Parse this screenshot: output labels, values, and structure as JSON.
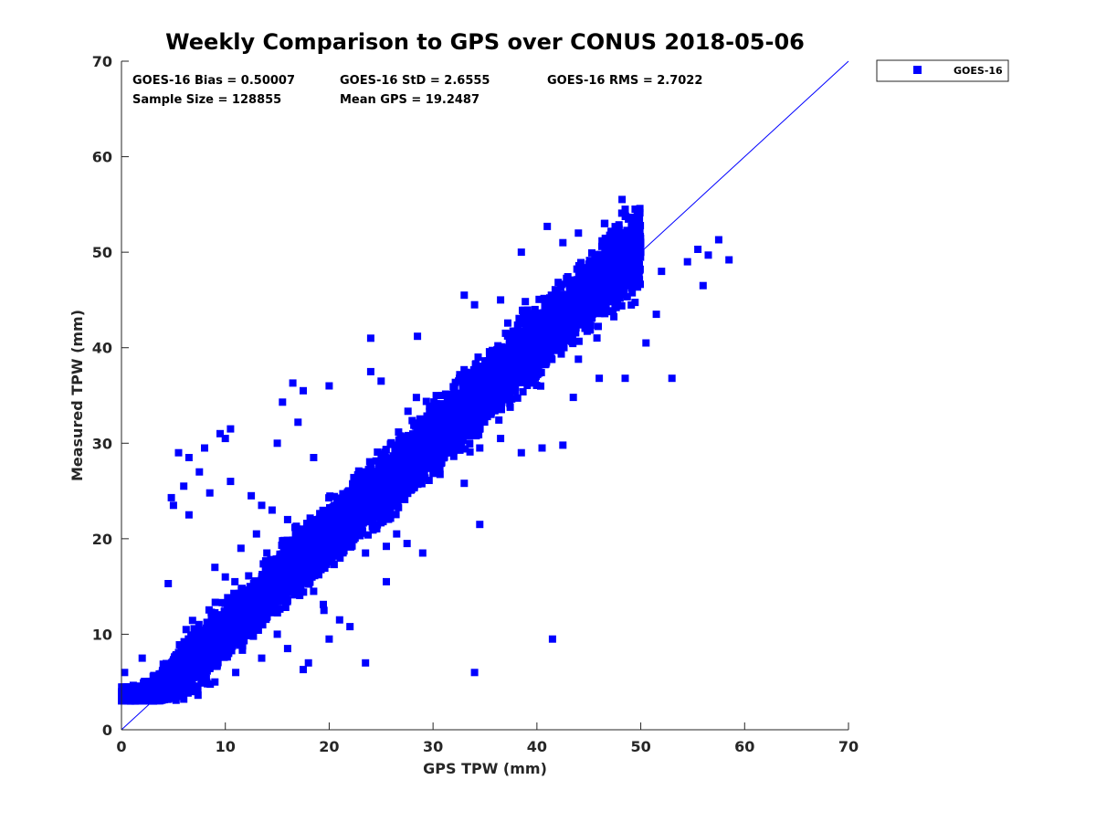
{
  "colors": {
    "series": "#0000ff",
    "axis": "#262626",
    "background": "#ffffff"
  },
  "stats": {
    "bias": "GOES-16 Bias = 0.50007",
    "std": "GOES-16 StD = 2.6555",
    "rms": "GOES-16 RMS = 2.7022",
    "sample_size": "Sample Size = 128855",
    "mean_gps": "Mean GPS = 19.2487"
  },
  "chart_data": {
    "type": "scatter",
    "title": "Weekly Comparison to GPS over CONUS 2018-05-06",
    "xlabel": "GPS TPW (mm)",
    "ylabel": "Measured TPW (mm)",
    "xlim": [
      0,
      70
    ],
    "ylim": [
      0,
      70
    ],
    "xticks": [
      "0",
      "10",
      "20",
      "30",
      "40",
      "50",
      "60",
      "70"
    ],
    "yticks": [
      "0",
      "10",
      "20",
      "30",
      "40",
      "50",
      "60",
      "70"
    ],
    "grid": false,
    "legend_position": "outside-top-right",
    "reference_line": {
      "from": [
        0,
        0
      ],
      "to": [
        70,
        70
      ]
    },
    "series": [
      {
        "name": "GOES-16",
        "color": "#0000ff",
        "marker": "square",
        "points": [
          [
            0.3,
            6.0
          ],
          [
            1.2,
            4.5
          ],
          [
            2.0,
            7.5
          ],
          [
            3.0,
            3.2
          ],
          [
            4.0,
            5.0
          ],
          [
            5.0,
            3.3
          ],
          [
            6.0,
            3.2
          ],
          [
            7.0,
            4.0
          ],
          [
            4.5,
            15.3
          ],
          [
            5.0,
            23.5
          ],
          [
            4.8,
            24.3
          ],
          [
            5.5,
            29.0
          ],
          [
            6.5,
            28.5
          ],
          [
            7.5,
            27.0
          ],
          [
            8.0,
            29.5
          ],
          [
            9.5,
            31.0
          ],
          [
            10.0,
            30.5
          ],
          [
            10.5,
            31.5
          ],
          [
            6.0,
            25.5
          ],
          [
            6.5,
            22.5
          ],
          [
            8.5,
            24.8
          ],
          [
            10.5,
            26.0
          ],
          [
            12.5,
            24.5
          ],
          [
            13.0,
            20.5
          ],
          [
            13.5,
            23.5
          ],
          [
            14.5,
            23.0
          ],
          [
            15.0,
            30.0
          ],
          [
            15.5,
            34.3
          ],
          [
            16.5,
            36.3
          ],
          [
            17.5,
            35.5
          ],
          [
            17.0,
            32.2
          ],
          [
            18.5,
            28.5
          ],
          [
            20.0,
            36.0
          ],
          [
            24.0,
            37.5
          ],
          [
            25.0,
            36.5
          ],
          [
            24.0,
            41.0
          ],
          [
            28.5,
            41.2
          ],
          [
            33.0,
            45.5
          ],
          [
            34.0,
            44.5
          ],
          [
            36.5,
            45.0
          ],
          [
            38.5,
            50.0
          ],
          [
            41.0,
            52.7
          ],
          [
            42.5,
            51.0
          ],
          [
            44.0,
            52.0
          ],
          [
            46.5,
            53.0
          ],
          [
            48.5,
            54.5
          ],
          [
            50.0,
            50.0
          ],
          [
            52.0,
            48.0
          ],
          [
            53.0,
            36.8
          ],
          [
            54.5,
            49.0
          ],
          [
            55.5,
            50.3
          ],
          [
            56.5,
            49.7
          ],
          [
            57.5,
            51.3
          ],
          [
            58.5,
            49.2
          ],
          [
            56.0,
            46.5
          ],
          [
            51.5,
            43.5
          ],
          [
            50.5,
            40.5
          ],
          [
            48.5,
            36.8
          ],
          [
            46.0,
            36.8
          ],
          [
            44.0,
            38.8
          ],
          [
            43.5,
            34.8
          ],
          [
            42.5,
            29.8
          ],
          [
            40.5,
            29.5
          ],
          [
            38.5,
            29.0
          ],
          [
            36.5,
            30.5
          ],
          [
            34.5,
            29.5
          ],
          [
            33.0,
            25.8
          ],
          [
            34.5,
            21.5
          ],
          [
            34.0,
            6.0
          ],
          [
            41.5,
            9.5
          ],
          [
            29.0,
            18.5
          ],
          [
            27.5,
            19.5
          ],
          [
            26.5,
            20.5
          ],
          [
            25.5,
            15.5
          ],
          [
            25.5,
            19.2
          ],
          [
            23.5,
            18.5
          ],
          [
            23.5,
            7.0
          ],
          [
            22.0,
            10.8
          ],
          [
            21.0,
            11.5
          ],
          [
            20.0,
            9.5
          ],
          [
            19.5,
            12.5
          ],
          [
            18.5,
            14.5
          ],
          [
            18.0,
            7.0
          ],
          [
            17.5,
            6.3
          ],
          [
            16.0,
            8.5
          ],
          [
            15.0,
            10.0
          ],
          [
            13.5,
            7.5
          ],
          [
            11.0,
            6.0
          ],
          [
            9.0,
            5.0
          ],
          [
            8.5,
            10.0
          ],
          [
            9.0,
            17.0
          ],
          [
            10.0,
            16.0
          ],
          [
            11.5,
            19.0
          ],
          [
            12.0,
            14.0
          ],
          [
            14.0,
            18.5
          ],
          [
            16.0,
            22.0
          ]
        ],
        "bands": [
          {
            "x_range": [
              0,
              5
            ],
            "y_center_offset": 0.3,
            "spread": 2.0
          },
          {
            "x_range": [
              5,
              15
            ],
            "y_center_offset": 0.3,
            "spread": 2.4
          },
          {
            "x_range": [
              15,
              30
            ],
            "y_center_offset": 0.4,
            "spread": 2.8
          },
          {
            "x_range": [
              30,
              45
            ],
            "y_center_offset": 0.6,
            "spread": 3.0
          },
          {
            "x_range": [
              45,
              50
            ],
            "y_center_offset": 0.7,
            "spread": 3.5
          }
        ]
      }
    ]
  }
}
